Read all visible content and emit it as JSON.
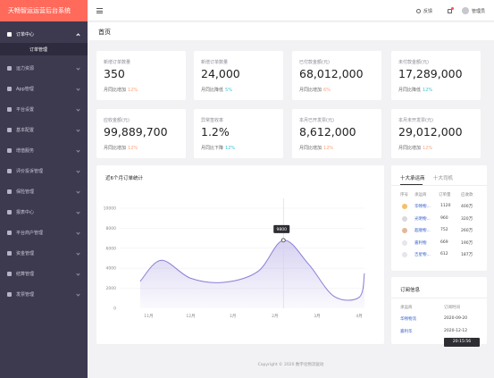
{
  "app": {
    "title": "天畅智运运营后台系统"
  },
  "sidebar": {
    "items": [
      {
        "label": "订单中心",
        "open": true
      },
      {
        "label": "运力资源"
      },
      {
        "label": "App管理"
      },
      {
        "label": "平台设置"
      },
      {
        "label": "基本配置"
      },
      {
        "label": "增值服务"
      },
      {
        "label": "评价投诉管理"
      },
      {
        "label": "保险管理"
      },
      {
        "label": "报表中心"
      },
      {
        "label": "平台商户管理"
      },
      {
        "label": "资金管理"
      },
      {
        "label": "结算管理"
      },
      {
        "label": "发票管理"
      }
    ],
    "sub_item": "订单管理"
  },
  "header": {
    "feedback": "反馈",
    "user": "管理员"
  },
  "page_title": "首页",
  "stats": [
    {
      "label": "新增订单数量",
      "value": "350",
      "trend_label": "月同比增加",
      "pct": "12%",
      "dir": "up"
    },
    {
      "label": "新增订单数量",
      "value": "24,000",
      "trend_label": "月同比降低",
      "pct": "5%",
      "dir": "down"
    },
    {
      "label": "已付款金额(元)",
      "value": "68,012,000",
      "trend_label": "月同比增加",
      "pct": "6%",
      "dir": "up"
    },
    {
      "label": "未付款金额(元)",
      "value": "17,289,000",
      "trend_label": "月同比降低",
      "pct": "12%",
      "dir": "down"
    },
    {
      "label": "应收金额(元)",
      "value": "99,889,700",
      "trend_label": "月同比增加",
      "pct": "12%",
      "dir": "up"
    },
    {
      "label": "异常签收率",
      "value": "1.2%",
      "trend_label": "月同比下降",
      "pct": "12%",
      "dir": "down"
    },
    {
      "label": "本月已开发票(元)",
      "value": "8,612,000",
      "trend_label": "月同比增加",
      "pct": "12%",
      "dir": "up"
    },
    {
      "label": "本月未开发票(元)",
      "value": "29,012,000",
      "trend_label": "月同比增加",
      "pct": "12%",
      "dir": "up"
    }
  ],
  "chart_data": {
    "type": "area",
    "title": "近6个月订单统计",
    "categories": [
      "11月",
      "12月",
      "1月",
      "2月",
      "3月",
      "4月"
    ],
    "yticks": [
      "0",
      "2000",
      "4000",
      "6000",
      "8000",
      "10000"
    ],
    "ylim": [
      0,
      10000
    ],
    "x": [
      -0.2,
      0.3,
      1.0,
      1.8,
      2.6,
      3.2,
      3.8,
      4.4,
      5.0,
      5.6
    ],
    "values": [
      2700,
      4800,
      3000,
      2600,
      3700,
      6800,
      4400,
      1200,
      1100,
      3500
    ],
    "highlight": {
      "label": "9800"
    },
    "color": "#8a7fd6"
  },
  "ranking": {
    "tabs": [
      "十大承运商",
      "十大司机"
    ],
    "headers": [
      "序号",
      "承运商",
      "订单量",
      "应收款"
    ],
    "rows": [
      {
        "name": "华畅物...",
        "orders": "1120",
        "amount": "400万",
        "medal": "#f2c16a"
      },
      {
        "name": "光明物...",
        "orders": "960",
        "amount": "320万",
        "medal": "#d9d9de"
      },
      {
        "name": "超顺物...",
        "orders": "752",
        "amount": "260万",
        "medal": "#e3b899"
      },
      {
        "name": "嘉利物",
        "orders": "669",
        "amount": "190万",
        "medal": "#e6e6ea"
      },
      {
        "name": "吉星物...",
        "orders": "612",
        "amount": "187万",
        "medal": "#e6e6ea"
      }
    ]
  },
  "orders": {
    "title": "订阅信息",
    "headers": [
      "承运商",
      "订阅时间"
    ],
    "rows": [
      {
        "name": "华畅物流",
        "date": "2020-09-20"
      },
      {
        "name": "嘉利华",
        "date": "2020-12-12"
      }
    ],
    "tooltip": "20:15:56"
  },
  "footer": "Copyright © 2020 数字化物流驱动"
}
